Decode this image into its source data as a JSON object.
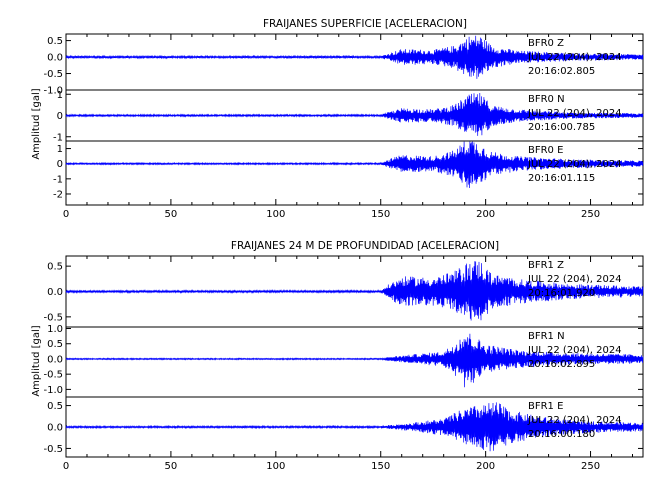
{
  "chart_data": [
    {
      "type": "line",
      "title": "FRAIJANES SUPERFICIE [ACELERACION]",
      "ylabel": "Amplitud [gal]",
      "xlabel": "",
      "xlim": [
        0,
        275
      ],
      "xticks": [
        0,
        50,
        100,
        150,
        200,
        250
      ],
      "line_color": "#0000ff",
      "grid": false,
      "traces": [
        {
          "station": "BFR0",
          "component": "Z",
          "date": "JUL 22 (204), 2024",
          "time": "20:16:02.805",
          "ylim": [
            -1.0,
            0.7
          ],
          "yticks": [
            -1.0,
            -0.5,
            0.0,
            0.5
          ],
          "ytick_labels": [
            "-1.0",
            "-0.5",
            "0.0",
            "0.5"
          ],
          "envelope": [
            [
              0,
              0.03
            ],
            [
              150,
              0.03
            ],
            [
              154,
              0.12
            ],
            [
              160,
              0.25
            ],
            [
              175,
              0.22
            ],
            [
              185,
              0.35
            ],
            [
              192,
              0.65
            ],
            [
              197,
              0.7
            ],
            [
              203,
              0.35
            ],
            [
              215,
              0.2
            ],
            [
              240,
              0.12
            ],
            [
              275,
              0.08
            ]
          ]
        },
        {
          "station": "BFR0",
          "component": "N",
          "date": "JUL 22 (204), 2024",
          "time": "20:16:00.785",
          "ylim": [
            -1.2,
            1.2
          ],
          "yticks": [
            -1,
            0,
            1
          ],
          "ytick_labels": [
            "-1",
            "0",
            "1"
          ],
          "envelope": [
            [
              0,
              0.04
            ],
            [
              150,
              0.04
            ],
            [
              154,
              0.18
            ],
            [
              160,
              0.35
            ],
            [
              175,
              0.3
            ],
            [
              185,
              0.5
            ],
            [
              192,
              1.0
            ],
            [
              197,
              1.1
            ],
            [
              203,
              0.5
            ],
            [
              215,
              0.3
            ],
            [
              240,
              0.15
            ],
            [
              275,
              0.1
            ]
          ]
        },
        {
          "station": "BFR0",
          "component": "E",
          "date": "JUL 22 (204), 2024",
          "time": "20:16:01.115",
          "ylim": [
            -2.2,
            1.5
          ],
          "yticks": [
            -2,
            -1,
            0,
            1
          ],
          "ytick_labels": [
            "-2",
            "-1",
            "0",
            "1"
          ],
          "envelope": [
            [
              0,
              0.05
            ],
            [
              150,
              0.05
            ],
            [
              154,
              0.3
            ],
            [
              160,
              0.6
            ],
            [
              175,
              0.5
            ],
            [
              185,
              0.9
            ],
            [
              192,
              1.8
            ],
            [
              197,
              1.4
            ],
            [
              203,
              0.8
            ],
            [
              215,
              0.5
            ],
            [
              240,
              0.3
            ],
            [
              275,
              0.2
            ]
          ]
        }
      ]
    },
    {
      "type": "line",
      "title": "FRAIJANES 24 M DE PROFUNDIDAD [ACELERACION]",
      "ylabel": "Amplitud [gal]",
      "xlabel": "",
      "xlim": [
        0,
        275
      ],
      "xticks": [
        0,
        50,
        100,
        150,
        200,
        250
      ],
      "line_color": "#0000ff",
      "grid": false,
      "traces": [
        {
          "station": "BFR1",
          "component": "Z",
          "date": "JUL 22 (204), 2024",
          "time": "20:16:01.920",
          "ylim": [
            -0.7,
            0.7
          ],
          "yticks": [
            -0.5,
            0.0,
            0.5
          ],
          "ytick_labels": [
            "-0.5",
            "0.0",
            "0.5"
          ],
          "envelope": [
            [
              0,
              0.02
            ],
            [
              150,
              0.02
            ],
            [
              154,
              0.15
            ],
            [
              160,
              0.3
            ],
            [
              175,
              0.28
            ],
            [
              185,
              0.4
            ],
            [
              192,
              0.6
            ],
            [
              197,
              0.65
            ],
            [
              203,
              0.35
            ],
            [
              215,
              0.25
            ],
            [
              240,
              0.15
            ],
            [
              275,
              0.1
            ]
          ]
        },
        {
          "station": "BFR1",
          "component": "N",
          "date": "JUL 22 (204), 2024",
          "time": "20:16:02.895",
          "ylim": [
            -1.25,
            1.05
          ],
          "yticks": [
            -1.0,
            -0.5,
            0.0,
            0.5,
            1.0
          ],
          "ytick_labels": [
            "-1.0",
            "-0.5",
            "0.0",
            "0.5",
            "1.0"
          ],
          "envelope": [
            [
              0,
              0.02
            ],
            [
              150,
              0.02
            ],
            [
              155,
              0.08
            ],
            [
              165,
              0.15
            ],
            [
              180,
              0.25
            ],
            [
              186,
              0.6
            ],
            [
              190,
              1.0
            ],
            [
              194,
              0.8
            ],
            [
              200,
              0.5
            ],
            [
              215,
              0.3
            ],
            [
              240,
              0.2
            ],
            [
              275,
              0.15
            ]
          ]
        },
        {
          "station": "BFR1",
          "component": "E",
          "date": "JUL 22 (204), 2024",
          "time": "20:16:00.180",
          "ylim": [
            -0.7,
            0.7
          ],
          "yticks": [
            -0.5,
            0.0,
            0.5
          ],
          "ytick_labels": [
            "-0.5",
            "0.0",
            "0.5"
          ],
          "envelope": [
            [
              0,
              0.02
            ],
            [
              150,
              0.02
            ],
            [
              155,
              0.05
            ],
            [
              165,
              0.1
            ],
            [
              180,
              0.2
            ],
            [
              188,
              0.4
            ],
            [
              195,
              0.5
            ],
            [
              205,
              0.6
            ],
            [
              212,
              0.4
            ],
            [
              225,
              0.25
            ],
            [
              245,
              0.15
            ],
            [
              275,
              0.1
            ]
          ]
        }
      ]
    }
  ]
}
